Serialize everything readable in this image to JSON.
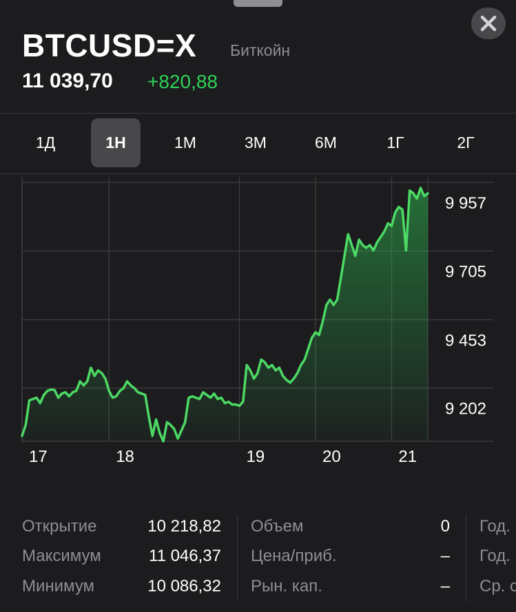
{
  "header": {
    "ticker": "BTCUSD=X",
    "company": "Биткойн",
    "price": "11 039,70",
    "change": "+820,88",
    "change_color": "#30d158",
    "close_icon": "close-icon"
  },
  "tabs": [
    {
      "label": "1Д",
      "active": false
    },
    {
      "label": "1Н",
      "active": true
    },
    {
      "label": "1М",
      "active": false
    },
    {
      "label": "3М",
      "active": false
    },
    {
      "label": "6М",
      "active": false
    },
    {
      "label": "1Г",
      "active": false
    },
    {
      "label": "2Г",
      "active": false
    }
  ],
  "chart_data": {
    "type": "area",
    "series": [
      {
        "values": [
          9100,
          9140,
          9230,
          9235,
          9240,
          9220,
          9250,
          9265,
          9270,
          9268,
          9240,
          9255,
          9260,
          9245,
          9260,
          9265,
          9300,
          9285,
          9300,
          9350,
          9320,
          9340,
          9330,
          9310,
          9265,
          9240,
          9245,
          9265,
          9275,
          9300,
          9285,
          9275,
          9260,
          9255,
          9250,
          9170,
          9100,
          9160,
          9110,
          9080,
          9150,
          9140,
          9125,
          9090,
          9120,
          9150,
          9240,
          9245,
          9240,
          9235,
          9260,
          9250,
          9240,
          9255,
          9235,
          9240,
          9220,
          9225,
          9215,
          9215,
          9210,
          9225,
          9360,
          9340,
          9310,
          9330,
          9380,
          9370,
          9350,
          9360,
          9340,
          9350,
          9320,
          9305,
          9295,
          9310,
          9330,
          9360,
          9380,
          9420,
          9460,
          9480,
          9470,
          9520,
          9580,
          9600,
          9580,
          9600,
          9680,
          9760,
          9840,
          9800,
          9760,
          9820,
          9800,
          9790,
          9800,
          9780,
          9810,
          9830,
          9850,
          9880,
          9870,
          9920,
          9940,
          9930,
          9780,
          10000,
          9990,
          9970,
          10010,
          9980,
          9990
        ]
      }
    ],
    "x_ticks": [
      {
        "label": "17",
        "index": 0
      },
      {
        "label": "18",
        "index": 24
      },
      {
        "label": "19",
        "index": 60
      },
      {
        "label": "20",
        "index": 81
      },
      {
        "label": "21",
        "index": 102
      }
    ],
    "y_ticks": [
      {
        "label": "9 957",
        "value": 9957
      },
      {
        "label": "9 705",
        "value": 9705
      },
      {
        "label": "9 453",
        "value": 9453
      },
      {
        "label": "9 202",
        "value": 9202
      }
    ],
    "ylim": [
      9080,
      10040
    ],
    "line_color": "#4cd964",
    "grid": true
  },
  "stats": {
    "col1": [
      {
        "label": "Открытие",
        "value": "10 218,82"
      },
      {
        "label": "Максимум",
        "value": "11 046,37"
      },
      {
        "label": "Минимум",
        "value": "10 086,32"
      }
    ],
    "col2": [
      {
        "label": "Объем",
        "value": "0"
      },
      {
        "label": "Цена/приб.",
        "value": "–"
      },
      {
        "label": "Рын. кап.",
        "value": "–"
      }
    ],
    "col3": [
      {
        "label": "Год."
      },
      {
        "label": "Год."
      },
      {
        "label": "Ср. с"
      }
    ]
  }
}
